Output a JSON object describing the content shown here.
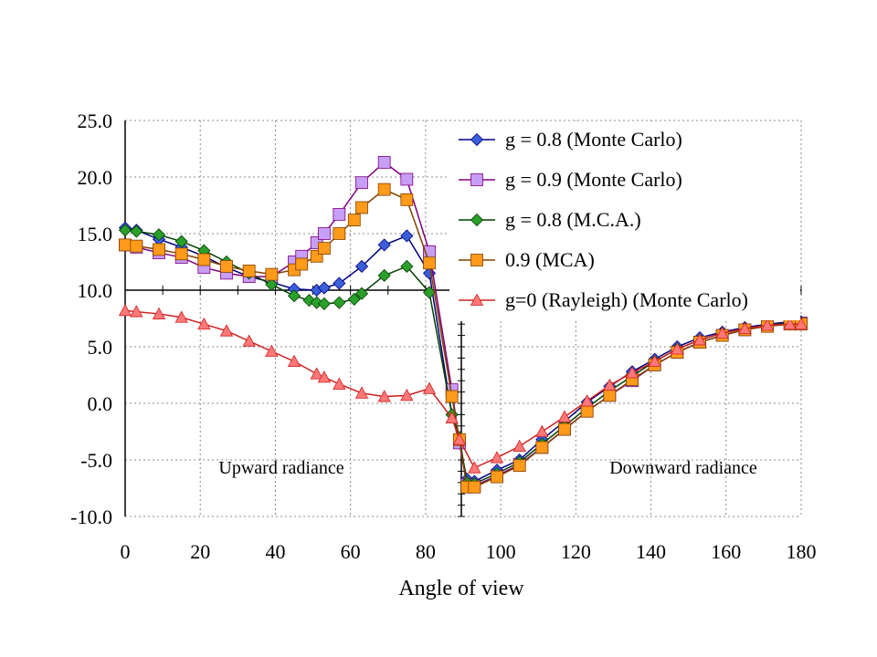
{
  "chart_data": {
    "type": "line",
    "xlabel": "Angle of view",
    "ylabel": "",
    "xlim": [
      0,
      180
    ],
    "ylim": [
      -10,
      25
    ],
    "x_ticks": [
      0,
      20,
      40,
      60,
      80,
      100,
      120,
      140,
      160,
      180
    ],
    "y_ticks": [
      "-10.0",
      "-5.0",
      "0.0",
      "5.0",
      "10.0",
      "15.0",
      "20.0",
      "25.0"
    ],
    "grid": "dotted",
    "legend_position": "top-right",
    "annotations": [
      {
        "text": "Upward radiance",
        "x": 38,
        "y": -5.6
      },
      {
        "text": "Downward radiance",
        "x": 148,
        "y": -5.6
      }
    ],
    "series": [
      {
        "name": "g = 0.8 (Monte Carlo)",
        "color": "#3a5fd9",
        "line": "#000080",
        "marker": "diamond",
        "x": [
          0,
          3,
          9,
          15,
          21,
          27,
          33,
          39,
          45,
          51,
          53,
          57,
          63,
          69,
          75,
          81,
          87,
          89,
          91,
          93,
          99,
          105,
          111,
          117,
          123,
          129,
          135,
          141,
          147,
          153,
          159,
          165,
          171,
          177,
          180
        ],
        "y": [
          15.5,
          15.3,
          14.5,
          13.8,
          13.0,
          12.0,
          11.2,
          10.7,
          10.1,
          10.0,
          10.2,
          10.6,
          12.1,
          14.0,
          14.8,
          11.5,
          -1.0,
          -3.5,
          -6.7,
          -6.9,
          -5.9,
          -5.0,
          -3.2,
          -1.6,
          0.1,
          1.5,
          2.8,
          3.9,
          5.0,
          5.8,
          6.3,
          6.7,
          7.0,
          7.2,
          7.2
        ]
      },
      {
        "name": "g = 0.9 (Monte Carlo)",
        "color": "#c79ef5",
        "line": "#800080",
        "marker": "square",
        "x": [
          0,
          3,
          9,
          15,
          21,
          27,
          33,
          39,
          45,
          47,
          51,
          53,
          57,
          63,
          69,
          75,
          81,
          87,
          89,
          91,
          93,
          99,
          105,
          111,
          117,
          123,
          129,
          135,
          141,
          147,
          153,
          159,
          165,
          171,
          177,
          180
        ],
        "y": [
          14.0,
          13.8,
          13.3,
          12.9,
          12.0,
          11.5,
          11.2,
          11.2,
          12.5,
          13.0,
          14.2,
          15.0,
          16.7,
          19.5,
          21.3,
          19.8,
          13.4,
          1.2,
          -3.5,
          -7.2,
          -7.3,
          -6.4,
          -5.4,
          -3.9,
          -2.3,
          -0.7,
          0.7,
          2.0,
          3.4,
          4.5,
          5.4,
          6.0,
          6.5,
          6.9,
          7.1,
          7.1
        ]
      },
      {
        "name": "g = 0.8 (M.C.A.)",
        "color": "#2aa02a",
        "line": "#004000",
        "marker": "diamond",
        "x": [
          0,
          3,
          9,
          15,
          21,
          27,
          33,
          39,
          45,
          49,
          51,
          53,
          57,
          61,
          63,
          69,
          75,
          81,
          87,
          89,
          91,
          93,
          99,
          105,
          111,
          117,
          123,
          129,
          135,
          141,
          147,
          153,
          159,
          165,
          171,
          177,
          180
        ],
        "y": [
          15.3,
          15.2,
          14.9,
          14.3,
          13.5,
          12.5,
          11.5,
          10.5,
          9.5,
          9.1,
          8.9,
          8.8,
          8.9,
          9.2,
          9.7,
          11.3,
          12.1,
          9.8,
          -1.0,
          -3.0,
          -7.0,
          -7.1,
          -6.2,
          -5.2,
          -3.6,
          -2.0,
          -0.4,
          1.1,
          2.4,
          3.7,
          4.8,
          5.6,
          6.2,
          6.6,
          6.9,
          7.1,
          7.1
        ]
      },
      {
        "name": "0.9 (MCA)",
        "color": "#ff9a1a",
        "line": "#804000",
        "marker": "square",
        "x": [
          0,
          3,
          9,
          15,
          21,
          27,
          33,
          39,
          45,
          47,
          51,
          53,
          57,
          61,
          63,
          69,
          75,
          81,
          87,
          89,
          91,
          93,
          99,
          105,
          111,
          117,
          123,
          129,
          135,
          141,
          147,
          153,
          159,
          165,
          171,
          177,
          180
        ],
        "y": [
          14.0,
          13.9,
          13.6,
          13.2,
          12.7,
          12.1,
          11.7,
          11.4,
          11.8,
          12.3,
          13.0,
          13.7,
          15.0,
          16.2,
          17.3,
          18.9,
          18.0,
          12.4,
          0.6,
          -3.2,
          -7.4,
          -7.4,
          -6.5,
          -5.5,
          -3.9,
          -2.3,
          -0.7,
          0.7,
          2.1,
          3.4,
          4.5,
          5.4,
          6.0,
          6.5,
          6.8,
          7.0,
          7.0
        ]
      },
      {
        "name": "g=0 (Rayleigh) (Monte Carlo)",
        "color": "#ff7878",
        "line": "#d02020",
        "marker": "triangle",
        "x": [
          0,
          3,
          9,
          15,
          21,
          27,
          33,
          39,
          45,
          51,
          53,
          57,
          63,
          69,
          75,
          81,
          87,
          89,
          93,
          99,
          105,
          111,
          117,
          123,
          129,
          135,
          141,
          147,
          153,
          159,
          165,
          171,
          177,
          180
        ],
        "y": [
          8.2,
          8.1,
          7.9,
          7.6,
          7.0,
          6.4,
          5.5,
          4.6,
          3.7,
          2.6,
          2.3,
          1.7,
          0.9,
          0.6,
          0.7,
          1.3,
          -1.3,
          -3.2,
          -5.7,
          -4.8,
          -3.8,
          -2.5,
          -1.2,
          0.2,
          1.6,
          2.7,
          3.7,
          4.8,
          5.6,
          6.2,
          6.6,
          6.9,
          7.0,
          7.0
        ]
      }
    ]
  }
}
